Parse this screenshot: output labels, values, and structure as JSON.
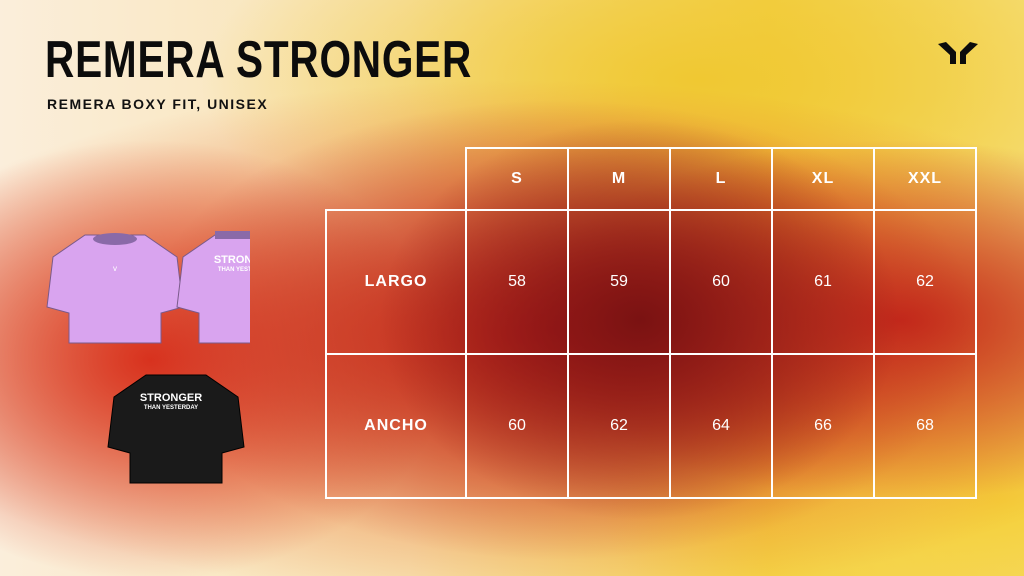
{
  "header": {
    "title": "REMERA STRONGER",
    "subtitle": "REMERA BOXY FIT, UNISEX",
    "logo_icon": "brand-chevron-logo"
  },
  "product_images": {
    "print_line1": "STRONGER",
    "print_line2": "THAN YESTERDAY",
    "colors": {
      "lilac": "#d9a4ef",
      "black": "#1a1a1a"
    }
  },
  "size_table": {
    "sizes": [
      "S",
      "M",
      "L",
      "XL",
      "XXL"
    ],
    "rows": [
      {
        "label": "LARGO",
        "values": [
          "58",
          "59",
          "60",
          "61",
          "62"
        ]
      },
      {
        "label": "ANCHO",
        "values": [
          "60",
          "62",
          "64",
          "66",
          "68"
        ]
      }
    ]
  }
}
